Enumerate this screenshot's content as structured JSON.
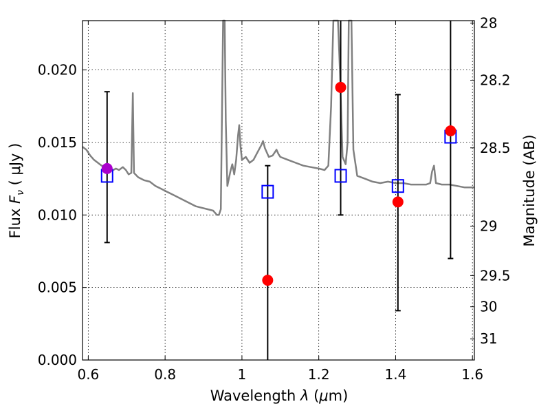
{
  "chart_data": {
    "type": "scatter",
    "xlabel_main": "Wavelength",
    "xlabel_lambda": "λ",
    "xlabel_unit_open": "(",
    "xlabel_mu": "μ",
    "xlabel_unit_close": "m)",
    "ylabel_main": "Flux",
    "ylabel_F": "F",
    "ylabel_nu": "ν",
    "ylabel_unit": "( μJy )",
    "ylabel_right": "Magnitude (AB)",
    "xlim": [
      0.585,
      1.605
    ],
    "ylim": [
      0.0,
      0.0234
    ],
    "x_ticks": [
      {
        "value": 0.6,
        "label": "0.6"
      },
      {
        "value": 0.8,
        "label": "0.8"
      },
      {
        "value": 1.0,
        "label": "1"
      },
      {
        "value": 1.2,
        "label": "1.2"
      },
      {
        "value": 1.4,
        "label": "1.4"
      },
      {
        "value": 1.6,
        "label": "1.6"
      }
    ],
    "y_ticks": [
      {
        "value": 0.0,
        "label": "0.000"
      },
      {
        "value": 0.005,
        "label": "0.005"
      },
      {
        "value": 0.01,
        "label": "0.010"
      },
      {
        "value": 0.015,
        "label": "0.015"
      },
      {
        "value": 0.02,
        "label": "0.020"
      }
    ],
    "right_ticks": [
      {
        "flux": 0.02323,
        "label": "28"
      },
      {
        "flux": 0.01929,
        "label": "28.2"
      },
      {
        "flux": 0.01463,
        "label": "28.5"
      },
      {
        "flux": 0.00923,
        "label": "29"
      },
      {
        "flux": 0.00582,
        "label": "29.5"
      },
      {
        "flux": 0.00367,
        "label": "30"
      },
      {
        "flux": 0.00146,
        "label": "31"
      }
    ],
    "model_spectrum": {
      "color": "#808080",
      "points": [
        [
          0.585,
          0.0147
        ],
        [
          0.595,
          0.0145
        ],
        [
          0.605,
          0.0141
        ],
        [
          0.615,
          0.0138
        ],
        [
          0.625,
          0.0136
        ],
        [
          0.635,
          0.0134
        ],
        [
          0.645,
          0.0133
        ],
        [
          0.655,
          0.0132
        ],
        [
          0.665,
          0.0131
        ],
        [
          0.672,
          0.0132
        ],
        [
          0.68,
          0.0131
        ],
        [
          0.69,
          0.0133
        ],
        [
          0.698,
          0.0131
        ],
        [
          0.705,
          0.0128
        ],
        [
          0.712,
          0.0129
        ],
        [
          0.716,
          0.0184
        ],
        [
          0.719,
          0.0129
        ],
        [
          0.73,
          0.0126
        ],
        [
          0.745,
          0.0124
        ],
        [
          0.76,
          0.0123
        ],
        [
          0.775,
          0.012
        ],
        [
          0.79,
          0.0118
        ],
        [
          0.805,
          0.0116
        ],
        [
          0.82,
          0.0114
        ],
        [
          0.835,
          0.0112
        ],
        [
          0.85,
          0.011
        ],
        [
          0.865,
          0.0108
        ],
        [
          0.88,
          0.0106
        ],
        [
          0.895,
          0.0105
        ],
        [
          0.91,
          0.0104
        ],
        [
          0.925,
          0.0103
        ],
        [
          0.935,
          0.01
        ],
        [
          0.94,
          0.01
        ],
        [
          0.945,
          0.0104
        ],
        [
          0.948,
          0.017
        ],
        [
          0.951,
          0.024
        ],
        [
          0.955,
          0.024
        ],
        [
          0.958,
          0.0165
        ],
        [
          0.962,
          0.012
        ],
        [
          0.97,
          0.013
        ],
        [
          0.975,
          0.0135
        ],
        [
          0.98,
          0.0128
        ],
        [
          0.985,
          0.0138
        ],
        [
          0.99,
          0.0155
        ],
        [
          0.993,
          0.0162
        ],
        [
          0.996,
          0.0148
        ],
        [
          1.0,
          0.0138
        ],
        [
          1.01,
          0.014
        ],
        [
          1.02,
          0.0136
        ],
        [
          1.03,
          0.0138
        ],
        [
          1.04,
          0.0143
        ],
        [
          1.05,
          0.0148
        ],
        [
          1.055,
          0.0151
        ],
        [
          1.06,
          0.0146
        ],
        [
          1.07,
          0.014
        ],
        [
          1.08,
          0.0141
        ],
        [
          1.09,
          0.0145
        ],
        [
          1.095,
          0.0142
        ],
        [
          1.1,
          0.014
        ],
        [
          1.12,
          0.0138
        ],
        [
          1.14,
          0.0136
        ],
        [
          1.16,
          0.0134
        ],
        [
          1.18,
          0.0133
        ],
        [
          1.2,
          0.0132
        ],
        [
          1.215,
          0.0131
        ],
        [
          1.225,
          0.0134
        ],
        [
          1.232,
          0.0175
        ],
        [
          1.238,
          0.024
        ],
        [
          1.25,
          0.024
        ],
        [
          1.255,
          0.02
        ],
        [
          1.262,
          0.014
        ],
        [
          1.27,
          0.0135
        ],
        [
          1.275,
          0.015
        ],
        [
          1.278,
          0.024
        ],
        [
          1.285,
          0.024
        ],
        [
          1.29,
          0.0145
        ],
        [
          1.3,
          0.0127
        ],
        [
          1.32,
          0.0125
        ],
        [
          1.34,
          0.0123
        ],
        [
          1.36,
          0.0122
        ],
        [
          1.38,
          0.0123
        ],
        [
          1.4,
          0.0122
        ],
        [
          1.42,
          0.0122
        ],
        [
          1.44,
          0.0121
        ],
        [
          1.46,
          0.0121
        ],
        [
          1.48,
          0.0121
        ],
        [
          1.49,
          0.0122
        ],
        [
          1.495,
          0.013
        ],
        [
          1.5,
          0.0134
        ],
        [
          1.505,
          0.0122
        ],
        [
          1.52,
          0.0121
        ],
        [
          1.54,
          0.0121
        ],
        [
          1.56,
          0.012
        ],
        [
          1.58,
          0.0119
        ],
        [
          1.605,
          0.0119
        ]
      ]
    },
    "observed": {
      "color": "#ff0000",
      "points": [
        {
          "x": 0.649,
          "y": 0.0132,
          "ylo": 0.0081,
          "yhi": 0.0185
        },
        {
          "x": 1.067,
          "y": 0.0055,
          "ylo": 0.0,
          "yhi": 0.0134
        },
        {
          "x": 1.257,
          "y": 0.0188,
          "ylo": 0.01,
          "yhi": 0.024
        },
        {
          "x": 1.406,
          "y": 0.0109,
          "ylo": 0.0034,
          "yhi": 0.0183
        },
        {
          "x": 1.543,
          "y": 0.0158,
          "ylo": 0.007,
          "yhi": 0.024
        }
      ]
    },
    "synthetic": {
      "color": "#0000ff",
      "points": [
        {
          "x": 0.649,
          "y": 0.0127
        },
        {
          "x": 1.067,
          "y": 0.0116
        },
        {
          "x": 1.257,
          "y": 0.0127
        },
        {
          "x": 1.406,
          "y": 0.012
        },
        {
          "x": 1.543,
          "y": 0.0154
        }
      ]
    },
    "first_point_color": "#aa00cc"
  }
}
